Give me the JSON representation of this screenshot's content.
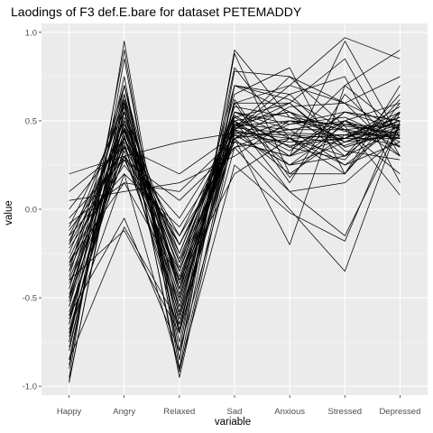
{
  "chart_data": {
    "type": "line",
    "title": "Laodings of F3 def.E.bare for dataset PETEMADDY",
    "xlabel": "variable",
    "ylabel": "value",
    "categories": [
      "Happy",
      "Angry",
      "Relaxed",
      "Sad",
      "Anxious",
      "Stressed",
      "Depressed"
    ],
    "y_ticks": [
      "1.0",
      "0.5",
      "0.0",
      "-0.5",
      "-1.0"
    ],
    "y_tick_values": [
      1.0,
      0.5,
      0.0,
      -0.5,
      -1.0
    ],
    "ylim": [
      -1.05,
      1.05
    ],
    "grid": true,
    "legend": "none",
    "line_color": "#000000",
    "panel_color": "#ebebeb",
    "grid_color": "#ffffff",
    "series": [
      {
        "values": [
          -0.98,
          0.62,
          -0.95,
          0.45,
          0.6,
          0.85,
          0.3
        ]
      },
      {
        "values": [
          -0.97,
          0.58,
          -0.92,
          0.5,
          0.3,
          0.95,
          0.4
        ]
      },
      {
        "values": [
          -0.95,
          0.95,
          -0.85,
          0.9,
          0.52,
          0.4,
          0.55
        ]
      },
      {
        "values": [
          -0.9,
          0.85,
          -0.8,
          0.88,
          0.2,
          0.2,
          0.6
        ]
      },
      {
        "values": [
          -0.88,
          0.7,
          -0.7,
          0.8,
          0.4,
          0.7,
          0.9
        ]
      },
      {
        "values": [
          -0.85,
          0.65,
          -0.75,
          0.7,
          0.62,
          0.45,
          0.2
        ]
      },
      {
        "values": [
          -0.8,
          0.55,
          -0.6,
          0.6,
          0.15,
          0.65,
          0.35
        ]
      },
      {
        "values": [
          -0.78,
          0.5,
          -0.55,
          0.55,
          0.48,
          0.55,
          0.45
        ]
      },
      {
        "values": [
          -0.75,
          0.6,
          -0.65,
          0.5,
          0.3,
          0.4,
          0.5
        ]
      },
      {
        "values": [
          -0.72,
          0.45,
          -0.5,
          0.48,
          0.55,
          0.38,
          0.48
        ]
      },
      {
        "values": [
          -0.7,
          0.4,
          -0.45,
          0.45,
          0.7,
          0.6,
          0.3
        ]
      },
      {
        "values": [
          -0.68,
          0.35,
          -0.4,
          0.42,
          0.25,
          0.3,
          0.45
        ]
      },
      {
        "values": [
          -0.65,
          0.5,
          -0.35,
          0.55,
          0.4,
          0.2,
          0.55
        ]
      },
      {
        "values": [
          -0.62,
          0.42,
          -0.6,
          0.4,
          0.5,
          0.48,
          0.42
        ]
      },
      {
        "values": [
          -0.6,
          0.38,
          -0.7,
          0.48,
          0.45,
          0.25,
          0.38
        ]
      },
      {
        "values": [
          -0.58,
          0.3,
          -0.55,
          0.52,
          0.35,
          0.5,
          0.6
        ]
      },
      {
        "values": [
          -0.55,
          0.48,
          -0.5,
          0.6,
          0.6,
          0.33,
          0.28
        ]
      },
      {
        "values": [
          -0.52,
          0.55,
          -0.45,
          0.45,
          0.2,
          0.42,
          0.52
        ]
      },
      {
        "values": [
          -0.5,
          0.33,
          -0.62,
          0.43,
          0.42,
          0.36,
          0.47
        ]
      },
      {
        "values": [
          -0.48,
          0.44,
          -0.4,
          0.5,
          0.55,
          0.44,
          0.4
        ]
      },
      {
        "values": [
          -0.45,
          0.52,
          -0.3,
          0.38,
          0.3,
          0.55,
          0.5
        ]
      },
      {
        "values": [
          -0.42,
          0.28,
          -0.35,
          0.45,
          0.65,
          0.35,
          0.44
        ]
      },
      {
        "values": [
          -0.4,
          0.4,
          -0.25,
          0.55,
          0.45,
          0.5,
          0.35
        ]
      },
      {
        "values": [
          -0.38,
          0.62,
          -0.45,
          0.42,
          0.38,
          0.4,
          0.58
        ]
      },
      {
        "values": [
          -0.35,
          0.36,
          -0.52,
          0.47,
          0.5,
          0.45,
          0.4
        ]
      },
      {
        "values": [
          -0.32,
          0.46,
          -0.3,
          0.53,
          0.35,
          0.28,
          0.62
        ]
      },
      {
        "values": [
          -0.3,
          0.3,
          -0.2,
          0.4,
          0.58,
          0.6,
          0.45
        ]
      },
      {
        "values": [
          -0.28,
          0.41,
          -0.38,
          0.46,
          0.43,
          0.42,
          0.42
        ]
      },
      {
        "values": [
          -0.25,
          0.5,
          -0.28,
          0.5,
          0.25,
          0.38,
          0.5
        ]
      },
      {
        "values": [
          -0.22,
          0.25,
          -0.15,
          0.35,
          0.48,
          0.52,
          0.38
        ]
      },
      {
        "values": [
          -0.2,
          0.35,
          -0.2,
          0.44,
          0.4,
          0.3,
          0.55
        ]
      },
      {
        "values": [
          -0.18,
          0.45,
          -0.33,
          0.58,
          0.52,
          0.47,
          0.43
        ]
      },
      {
        "values": [
          -0.15,
          0.2,
          -0.1,
          0.38,
          0.3,
          0.5,
          0.4
        ]
      },
      {
        "values": [
          -0.12,
          0.3,
          -0.05,
          0.45,
          0.36,
          0.4,
          0.52
        ]
      },
      {
        "values": [
          -0.1,
          0.55,
          -0.25,
          0.52,
          0.6,
          0.35,
          0.45
        ]
      },
      {
        "values": [
          -0.08,
          0.15,
          0.1,
          0.4,
          0.45,
          0.45,
          0.48
        ]
      },
      {
        "values": [
          -0.05,
          0.28,
          0.05,
          0.35,
          0.4,
          0.42,
          0.36
        ]
      },
      {
        "values": [
          0.0,
          0.4,
          -0.15,
          0.48,
          0.33,
          0.55,
          0.5
        ]
      },
      {
        "values": [
          0.05,
          0.1,
          0.15,
          0.3,
          0.5,
          0.38,
          0.42
        ]
      },
      {
        "values": [
          0.1,
          0.35,
          0.2,
          0.42,
          0.25,
          0.48,
          0.46
        ]
      },
      {
        "values": [
          0.2,
          0.3,
          0.38,
          0.43,
          0.42,
          0.4,
          0.4
        ]
      },
      {
        "values": [
          -0.85,
          -0.1,
          -0.65,
          0.4,
          -0.2,
          0.7,
          0.45
        ]
      },
      {
        "values": [
          -0.6,
          -0.05,
          -0.8,
          0.35,
          0.0,
          -0.35,
          0.5
        ]
      },
      {
        "values": [
          -0.7,
          0.2,
          -0.9,
          0.25,
          -0.02,
          -0.18,
          0.55
        ]
      },
      {
        "values": [
          -0.4,
          -0.12,
          -0.7,
          0.5,
          0.1,
          -0.15,
          0.48
        ]
      },
      {
        "values": [
          -0.55,
          0.7,
          -0.58,
          0.6,
          0.7,
          0.97,
          0.85
        ]
      },
      {
        "values": [
          -0.65,
          0.75,
          -0.85,
          0.78,
          0.75,
          0.6,
          0.75
        ]
      },
      {
        "values": [
          -0.75,
          0.9,
          -0.9,
          0.7,
          0.55,
          0.3,
          0.65
        ]
      },
      {
        "values": [
          -0.45,
          0.65,
          -0.48,
          0.65,
          0.8,
          0.2,
          0.7
        ]
      },
      {
        "values": [
          -0.35,
          0.7,
          -0.45,
          0.7,
          0.65,
          0.75,
          0.15
        ]
      },
      {
        "values": [
          -0.5,
          0.6,
          -0.68,
          0.62,
          0.18,
          0.5,
          0.3
        ]
      },
      {
        "values": [
          -0.3,
          0.15,
          -0.4,
          0.2,
          0.4,
          0.25,
          0.48
        ]
      },
      {
        "values": [
          -0.2,
          0.6,
          -0.42,
          0.46,
          0.75,
          0.47,
          0.08
        ]
      },
      {
        "values": [
          -0.15,
          0.45,
          -0.2,
          0.4,
          0.1,
          0.15,
          0.42
        ]
      }
    ]
  }
}
